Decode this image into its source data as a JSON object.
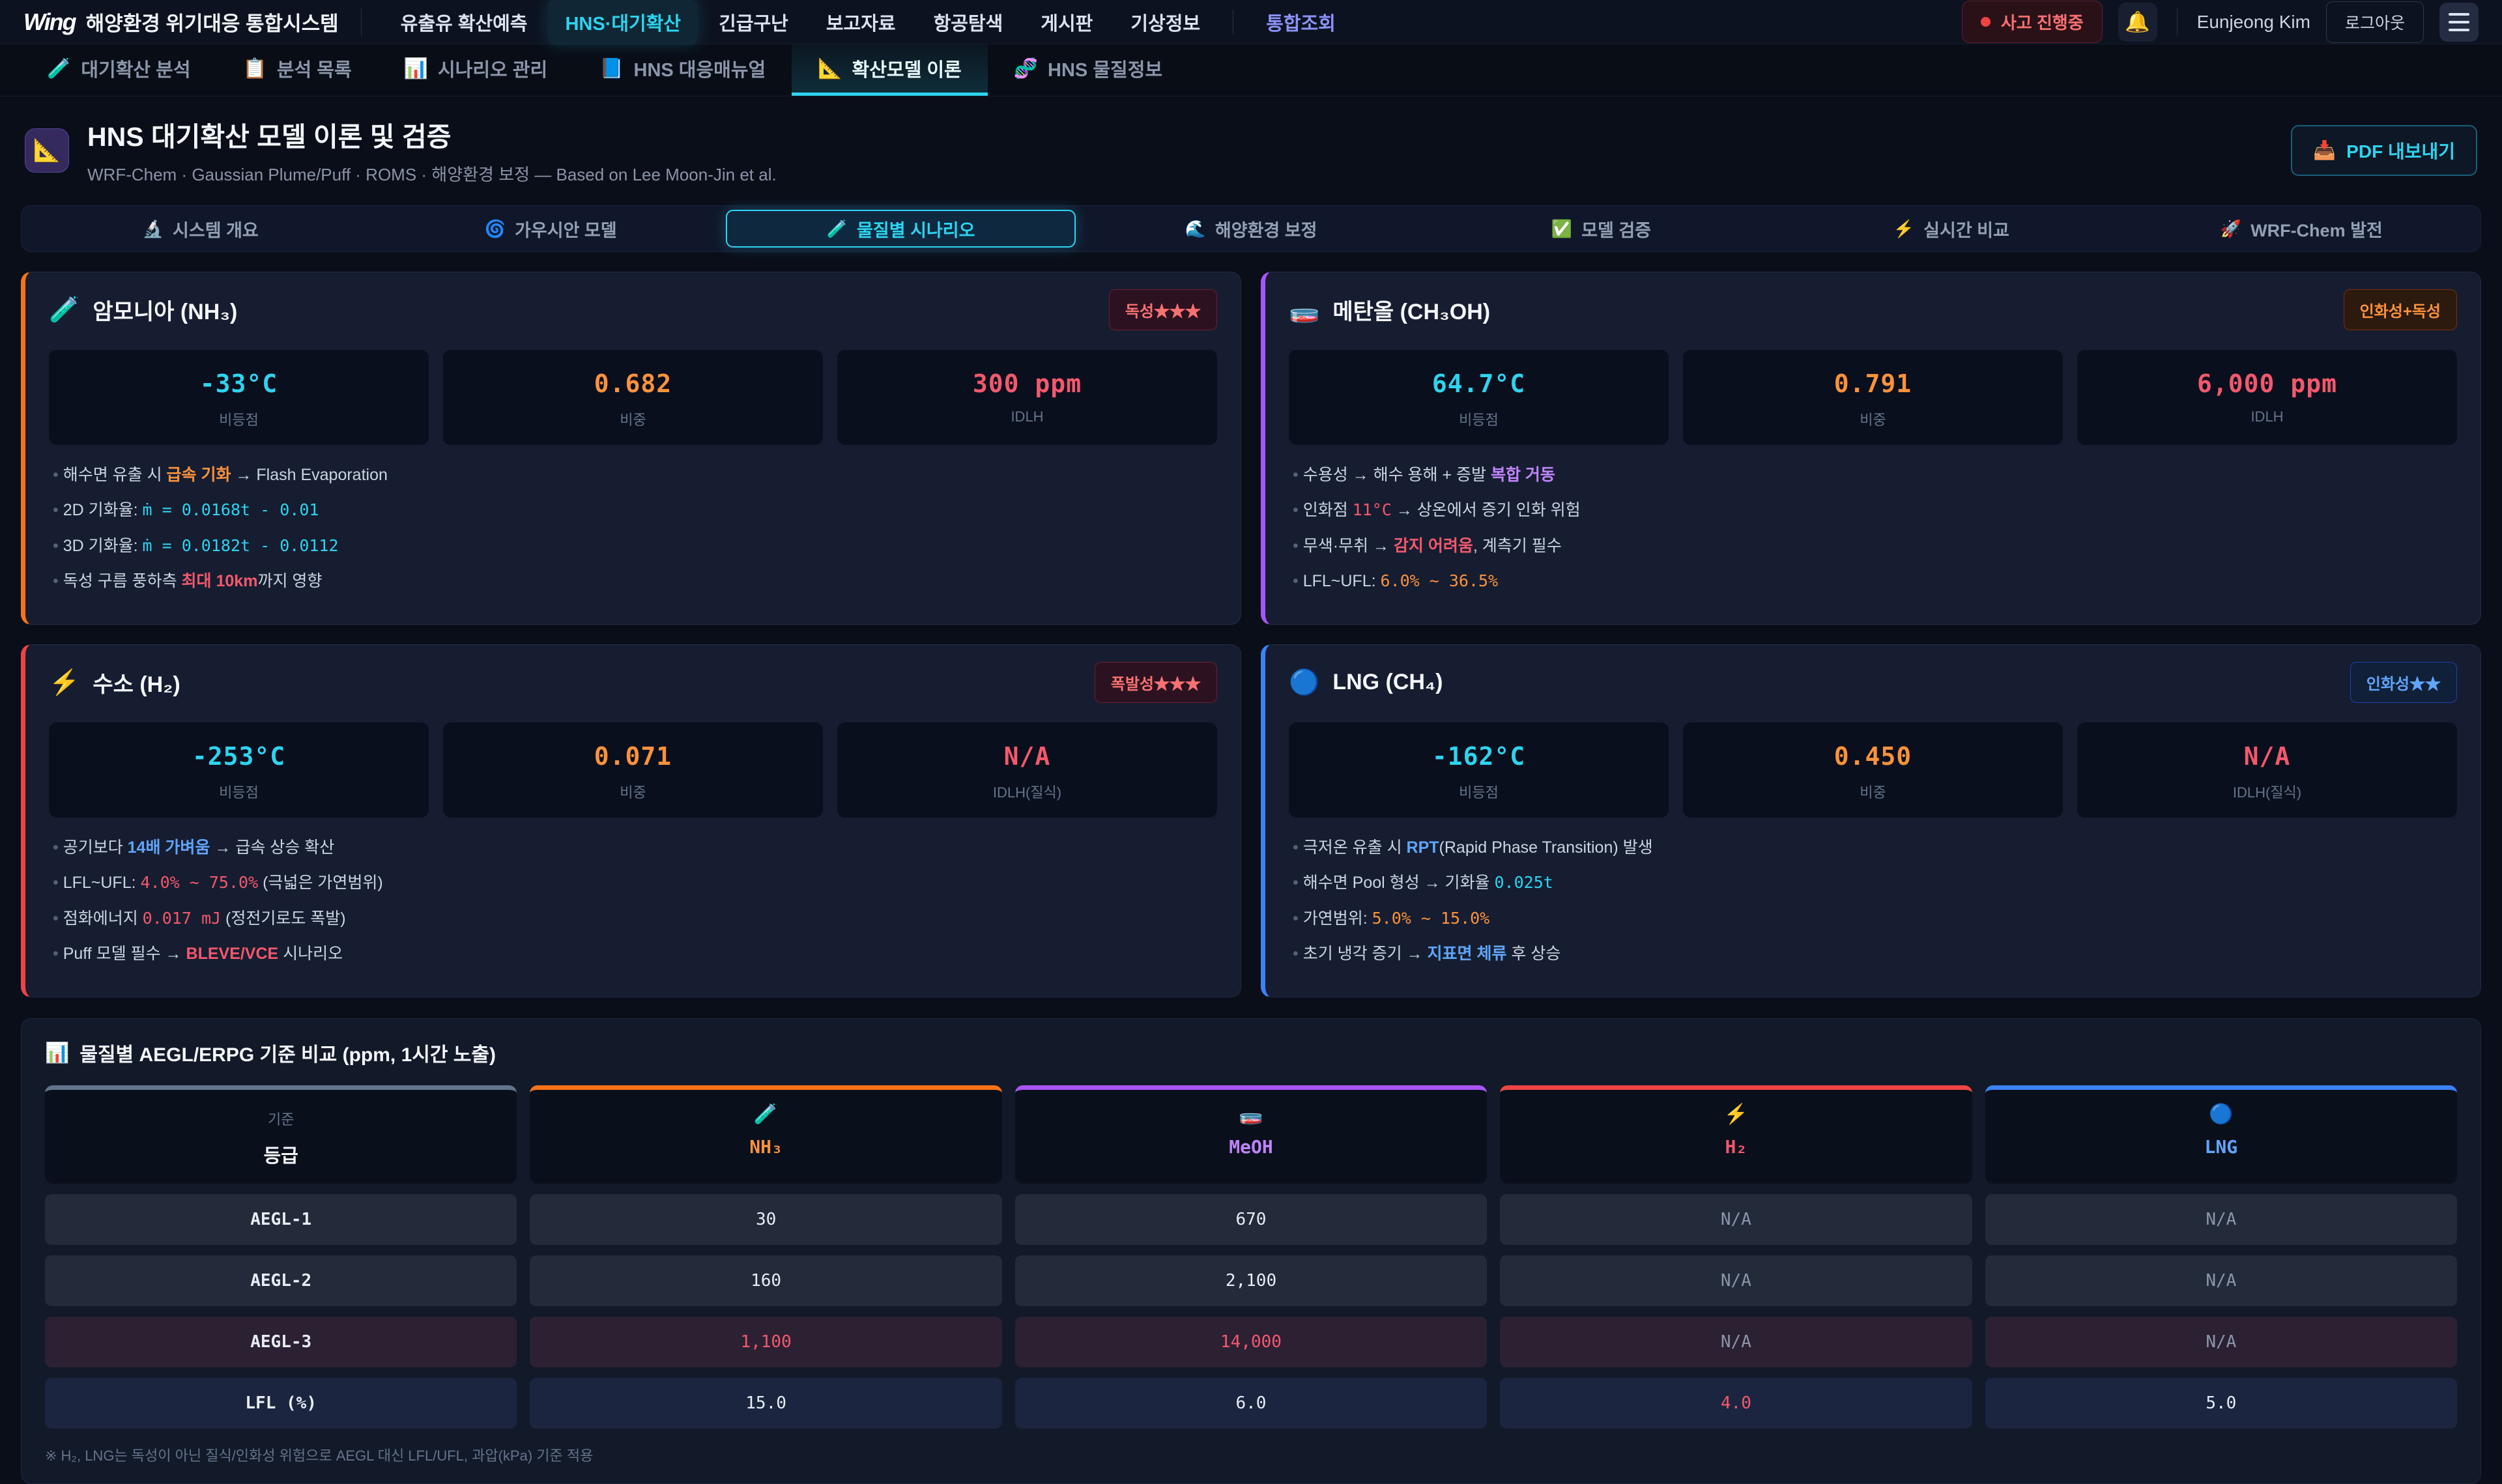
{
  "colors": {
    "accent_cyan": "#2dd4ef",
    "accent_nh3": "#f97316",
    "accent_meoh": "#a855f7",
    "accent_h2": "#ef4444",
    "accent_lng": "#3b82f6",
    "alert_red": "#ef4444"
  },
  "topnav": {
    "logo": "Wing",
    "title": "해양환경 위기대응 통합시스템",
    "items": [
      "유출유 확산예측",
      "HNS·대기확산",
      "긴급구난",
      "보고자료",
      "항공탐색",
      "게시판",
      "기상정보",
      "통합조회"
    ],
    "incident": "사고 진행중",
    "bell_icon": "🔔",
    "user": "Eunjeong Kim",
    "logout": "로그아웃"
  },
  "tabs": [
    {
      "icon": "🧪",
      "label": "대기확산 분석"
    },
    {
      "icon": "📋",
      "label": "분석 목록"
    },
    {
      "icon": "📊",
      "label": "시나리오 관리"
    },
    {
      "icon": "📘",
      "label": "HNS 대응매뉴얼"
    },
    {
      "icon": "📐",
      "label": "확산모델 이론"
    },
    {
      "icon": "🧬",
      "label": "HNS 물질정보"
    }
  ],
  "header": {
    "icon": "📐",
    "title": "HNS 대기확산 모델 이론 및 검증",
    "subtitle": "WRF-Chem · Gaussian Plume/Puff · ROMS · 해양환경 보정 — Based on Lee Moon-Jin et al.",
    "pdf_icon": "📥",
    "pdf_label": "PDF 내보내기"
  },
  "section_tabs": [
    {
      "icon": "🔬",
      "label": "시스템 개요"
    },
    {
      "icon": "🌀",
      "label": "가우시안 모델"
    },
    {
      "icon": "🧪",
      "label": "물질별 시나리오"
    },
    {
      "icon": "🌊",
      "label": "해양환경 보정"
    },
    {
      "icon": "✅",
      "label": "모델 검증"
    },
    {
      "icon": "⚡",
      "label": "실시간 비교"
    },
    {
      "icon": "🚀",
      "label": "WRF-Chem 발전"
    }
  ],
  "cards": [
    {
      "icon": "🧪",
      "name": "암모니아 (NH₃)",
      "badge": "독성★★★",
      "stats": [
        {
          "value": "-33°C",
          "label": "비등점"
        },
        {
          "value": "0.682",
          "label": "비중"
        },
        {
          "value": "300 ppm",
          "label": "IDLH"
        }
      ],
      "bullets": [
        [
          "해수면 유출 시 ",
          "급속 기화",
          " → Flash Evaporation"
        ],
        [
          "2D 기화율: ",
          "ṁ = 0.0168t - 0.01"
        ],
        [
          "3D 기화율: ",
          "ṁ = 0.0182t - 0.0112"
        ],
        [
          "독성 구름 풍하측 ",
          "최대 10km",
          "까지 영향"
        ]
      ]
    },
    {
      "icon": "🧫",
      "name": "메탄올 (CH₃OH)",
      "badge": "인화성+독성",
      "stats": [
        {
          "value": "64.7°C",
          "label": "비등점"
        },
        {
          "value": "0.791",
          "label": "비중"
        },
        {
          "value": "6,000 ppm",
          "label": "IDLH"
        }
      ],
      "bullets": [
        [
          "수용성 → 해수 용해 + 증발 ",
          "복합 거동"
        ],
        [
          "인화점 ",
          "11°C",
          " → 상온에서 증기 인화 위험"
        ],
        [
          "무색·무취 → ",
          "감지 어려움",
          ", 계측기 필수"
        ],
        [
          "LFL~UFL: ",
          "6.0% ~ 36.5%"
        ]
      ]
    },
    {
      "icon": "⚡",
      "name": "수소 (H₂)",
      "badge": "폭발성★★★",
      "stats": [
        {
          "value": "-253°C",
          "label": "비등점"
        },
        {
          "value": "0.071",
          "label": "비중"
        },
        {
          "value": "N/A",
          "label": "IDLH(질식)"
        }
      ],
      "bullets": [
        [
          "공기보다 ",
          "14배 가벼움",
          " → 급속 상승 확산"
        ],
        [
          "LFL~UFL: ",
          "4.0% ~ 75.0%",
          " (극넓은 가연범위)"
        ],
        [
          "점화에너지 ",
          "0.017 mJ",
          " (정전기로도 폭발)"
        ],
        [
          "Puff 모델 필수 → ",
          "BLEVE/VCE",
          " 시나리오"
        ]
      ]
    },
    {
      "icon": "🔵",
      "name": "LNG (CH₄)",
      "badge": "인화성★★",
      "stats": [
        {
          "value": "-162°C",
          "label": "비등점"
        },
        {
          "value": "0.450",
          "label": "비중"
        },
        {
          "value": "N/A",
          "label": "IDLH(질식)"
        }
      ],
      "bullets": [
        [
          "극저온 유출 시 ",
          "RPT",
          "(Rapid Phase Transition) 발생"
        ],
        [
          "해수면 Pool 형성 → 기화율 ",
          "0.025t"
        ],
        [
          "가연범위: ",
          "5.0% ~ 15.0%"
        ],
        [
          "초기 냉각 증기 → ",
          "지표면 체류",
          " 후 상승"
        ]
      ]
    }
  ],
  "table": {
    "icon": "📊",
    "title": "물질별 AEGL/ERPG 기준 비교 (ppm, 1시간 노출)",
    "corner": {
      "top": "기준",
      "bottom": "등급"
    },
    "columns": [
      {
        "icon": "🧪",
        "label": "NH₃"
      },
      {
        "icon": "🧫",
        "label": "MeOH"
      },
      {
        "icon": "⚡",
        "label": "H₂"
      },
      {
        "icon": "🔵",
        "label": "LNG"
      }
    ],
    "rows": [
      {
        "label": "AEGL-1",
        "values": [
          "30",
          "670",
          "N/A",
          "N/A"
        ]
      },
      {
        "label": "AEGL-2",
        "values": [
          "160",
          "2,100",
          "N/A",
          "N/A"
        ]
      },
      {
        "label": "AEGL-3",
        "values": [
          "1,100",
          "14,000",
          "N/A",
          "N/A"
        ]
      },
      {
        "label": "LFL (%)",
        "values": [
          "15.0",
          "6.0",
          "4.0",
          "5.0"
        ]
      }
    ],
    "footnote": "※ H₂, LNG는 독성이 아닌 질식/인화성 위험으로 AEGL 대신 LFL/UFL, 과압(kPa) 기준 적용"
  }
}
